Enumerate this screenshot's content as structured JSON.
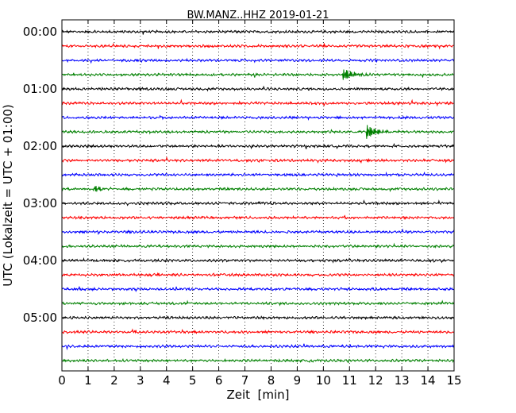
{
  "chart_data": {
    "type": "line",
    "title": "BW.MANZ..HHZ 2019-01-21",
    "xlabel": "Zeit  [min]",
    "ylabel": "UTC (Lokalzeit = UTC + 01:00)",
    "xlim": [
      0,
      15
    ],
    "x_ticks": [
      "0",
      "1",
      "2",
      "3",
      "4",
      "5",
      "6",
      "7",
      "8",
      "9",
      "10",
      "11",
      "12",
      "13",
      "14",
      "15"
    ],
    "row_period_min": 15,
    "rows": 24,
    "start_time": "00:00",
    "y_tick_labels": [
      "00:00",
      "01:00",
      "02:00",
      "03:00",
      "04:00",
      "05:00"
    ],
    "grid": "vertical-dotted",
    "trace_colors": [
      "#000000",
      "#ff0000",
      "#0000ff",
      "#008000"
    ],
    "events": [
      {
        "row": 3,
        "minute": 10.8,
        "amplitude": 0.8
      },
      {
        "row": 7,
        "minute": 11.7,
        "amplitude": 0.85
      },
      {
        "row": 11,
        "minute": 1.3,
        "amplitude": 0.35
      }
    ]
  }
}
